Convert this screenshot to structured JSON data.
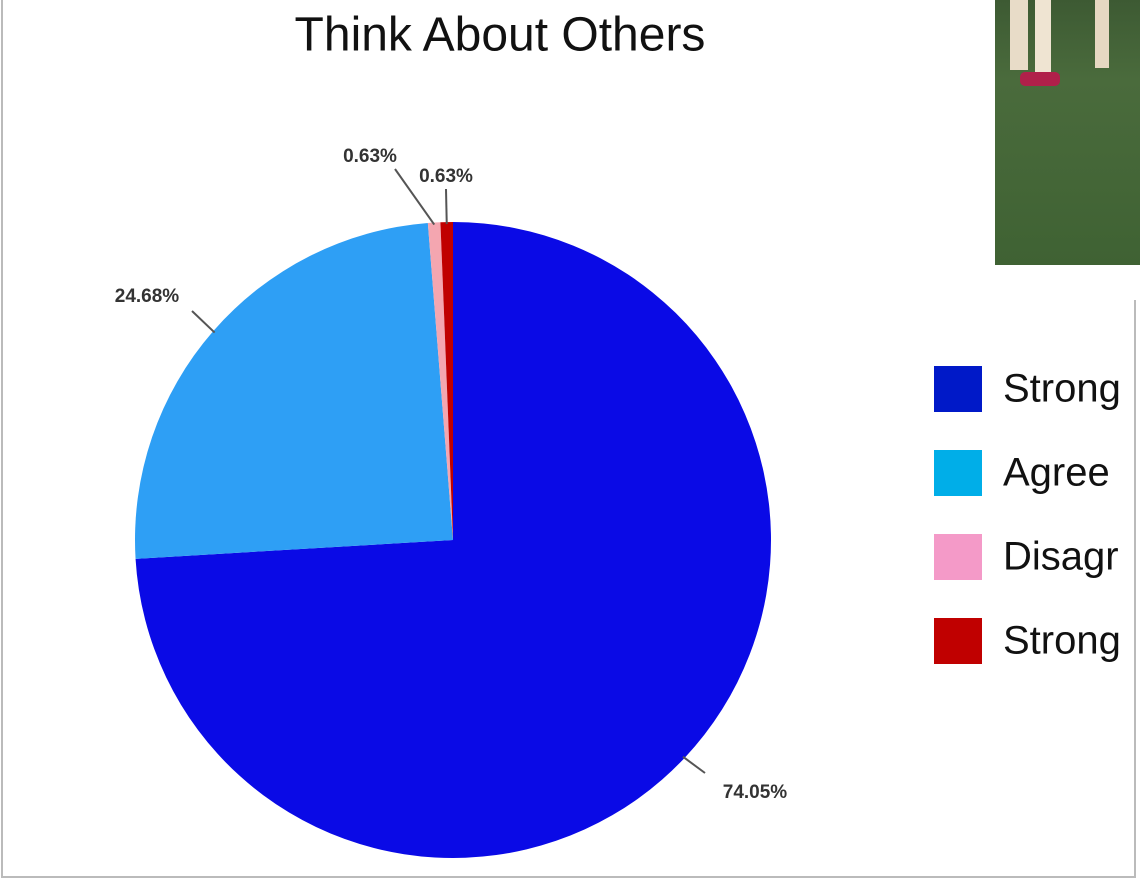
{
  "chart_data": {
    "type": "pie",
    "title": "Think About Others",
    "categories": [
      "Strong",
      "Agree",
      "Disagr",
      "Strong"
    ],
    "values": [
      74.05,
      24.68,
      0.63,
      0.63
    ],
    "value_labels": [
      "74.05%",
      "24.68%",
      "0.63%",
      "0.63%"
    ],
    "colors": [
      "#0a0ae6",
      "#2e9ff5",
      "#f4a6b0",
      "#c00000"
    ],
    "legend_colors": [
      "#0019c8",
      "#00aee8",
      "#f49ac8",
      "#c00000"
    ],
    "legend": "right"
  }
}
